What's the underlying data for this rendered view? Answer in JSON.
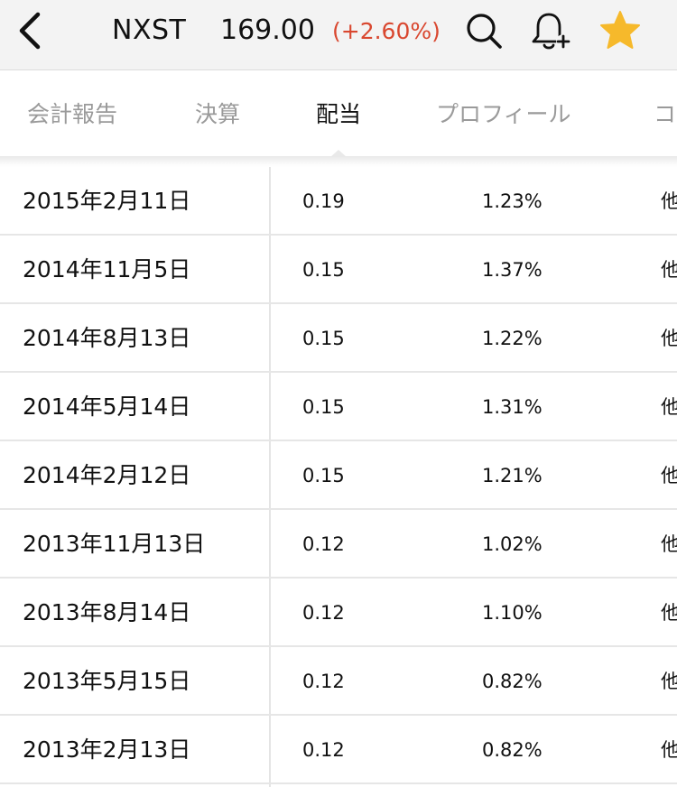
{
  "header": {
    "ticker": "NXST",
    "price": "169.00",
    "change": "(+2.60%)",
    "change_color": "#d9472f",
    "icons": {
      "back": "chevron-left-icon",
      "search": "search-icon",
      "alert": "bell-plus-icon",
      "favorite": "star-icon"
    },
    "star_color": "#f6b92b"
  },
  "tabs": [
    {
      "label": "会計報告",
      "active": false
    },
    {
      "label": "決算",
      "active": false
    },
    {
      "label": "配当",
      "active": true
    },
    {
      "label": "プロフィール",
      "active": false
    },
    {
      "label": "コ",
      "active": false
    }
  ],
  "dividends": [
    {
      "date": "2015年2月11日",
      "amount": "0.19",
      "yield": "1.23%",
      "type": "他"
    },
    {
      "date": "2014年11月5日",
      "amount": "0.15",
      "yield": "1.37%",
      "type": "他"
    },
    {
      "date": "2014年8月13日",
      "amount": "0.15",
      "yield": "1.22%",
      "type": "他"
    },
    {
      "date": "2014年5月14日",
      "amount": "0.15",
      "yield": "1.31%",
      "type": "他"
    },
    {
      "date": "2014年2月12日",
      "amount": "0.15",
      "yield": "1.21%",
      "type": "他"
    },
    {
      "date": "2013年11月13日",
      "amount": "0.12",
      "yield": "1.02%",
      "type": "他"
    },
    {
      "date": "2013年8月14日",
      "amount": "0.12",
      "yield": "1.10%",
      "type": "他"
    },
    {
      "date": "2013年5月15日",
      "amount": "0.12",
      "yield": "0.82%",
      "type": "他"
    },
    {
      "date": "2013年2月13日",
      "amount": "0.12",
      "yield": "0.82%",
      "type": "他"
    }
  ]
}
